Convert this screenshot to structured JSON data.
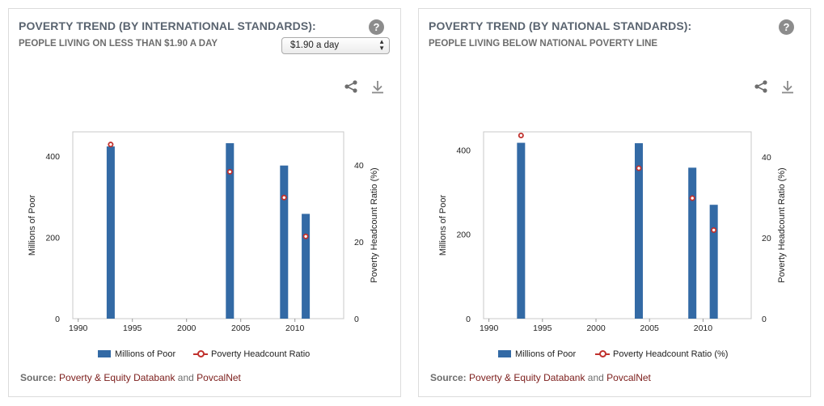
{
  "panels": [
    {
      "title": "POVERTY TREND (BY INTERNATIONAL STANDARDS):",
      "subtitle": "PEOPLE LIVING ON LESS THAN $1.90 A DAY",
      "help_label": "?",
      "selector": {
        "value": "$1.90 a day"
      },
      "legend": {
        "bars": "Millions of Poor",
        "line": "Poverty Headcount Ratio"
      },
      "source": {
        "prefix": "Source:",
        "link1": "Poverty & Equity Databank",
        "conj": "and",
        "link2": "PovcalNet"
      }
    },
    {
      "title": "POVERTY TREND (BY NATIONAL STANDARDS):",
      "subtitle": "PEOPLE LIVING BELOW NATIONAL POVERTY LINE",
      "help_label": "?",
      "legend": {
        "bars": "Millions of Poor",
        "line": "Poverty Headcount Ratio (%)"
      },
      "source": {
        "prefix": "Source:",
        "link1": "Poverty & Equity Databank",
        "conj": "and",
        "link2": "PovcalNet"
      }
    }
  ],
  "colors": {
    "bar": "#336aa5",
    "line": "#c0312d",
    "link": "#7b1c1a"
  },
  "icons": [
    "question-icon",
    "share-icon",
    "download-icon"
  ],
  "chart_data": [
    {
      "type": "bar",
      "x": [
        1993,
        2004,
        2009,
        2011
      ],
      "series": [
        {
          "name": "Millions of Poor",
          "axis": "left",
          "values": [
            424,
            432,
            377,
            258
          ]
        },
        {
          "name": "Poverty Headcount Ratio",
          "axis": "right",
          "mark": "point",
          "values": [
            45.3,
            38.2,
            31.5,
            21.4
          ]
        }
      ],
      "xlabel": "",
      "ylabel": "Millions of Poor",
      "y2label": "Poverty Headcount Ratio (%)",
      "xticks": [
        1990,
        1995,
        2000,
        2005,
        2010
      ],
      "xlim": [
        1989.5,
        2014.5
      ],
      "yticks": [
        0,
        200,
        400
      ],
      "ylim": [
        0,
        460
      ],
      "y2ticks": [
        0,
        20,
        40
      ],
      "y2lim": [
        0,
        48.6
      ],
      "grid": false,
      "legend": "bottom"
    },
    {
      "type": "bar",
      "x": [
        1993,
        2004,
        2009,
        2011
      ],
      "series": [
        {
          "name": "Millions of Poor",
          "axis": "left",
          "values": [
            417,
            416,
            358,
            270
          ]
        },
        {
          "name": "Poverty Headcount Ratio (%)",
          "axis": "right",
          "mark": "point",
          "values": [
            45.3,
            37.2,
            29.8,
            21.9
          ]
        }
      ],
      "xlabel": "",
      "ylabel": "Millions of Poor",
      "y2label": "Poverty Headcount Ratio (%)",
      "xticks": [
        1990,
        1995,
        2000,
        2005,
        2010
      ],
      "xlim": [
        1989.5,
        2014.5
      ],
      "yticks": [
        0,
        200,
        400
      ],
      "ylim": [
        0,
        443
      ],
      "y2ticks": [
        0,
        20,
        40
      ],
      "y2lim": [
        0,
        46.2
      ],
      "grid": false,
      "legend": "bottom"
    }
  ]
}
